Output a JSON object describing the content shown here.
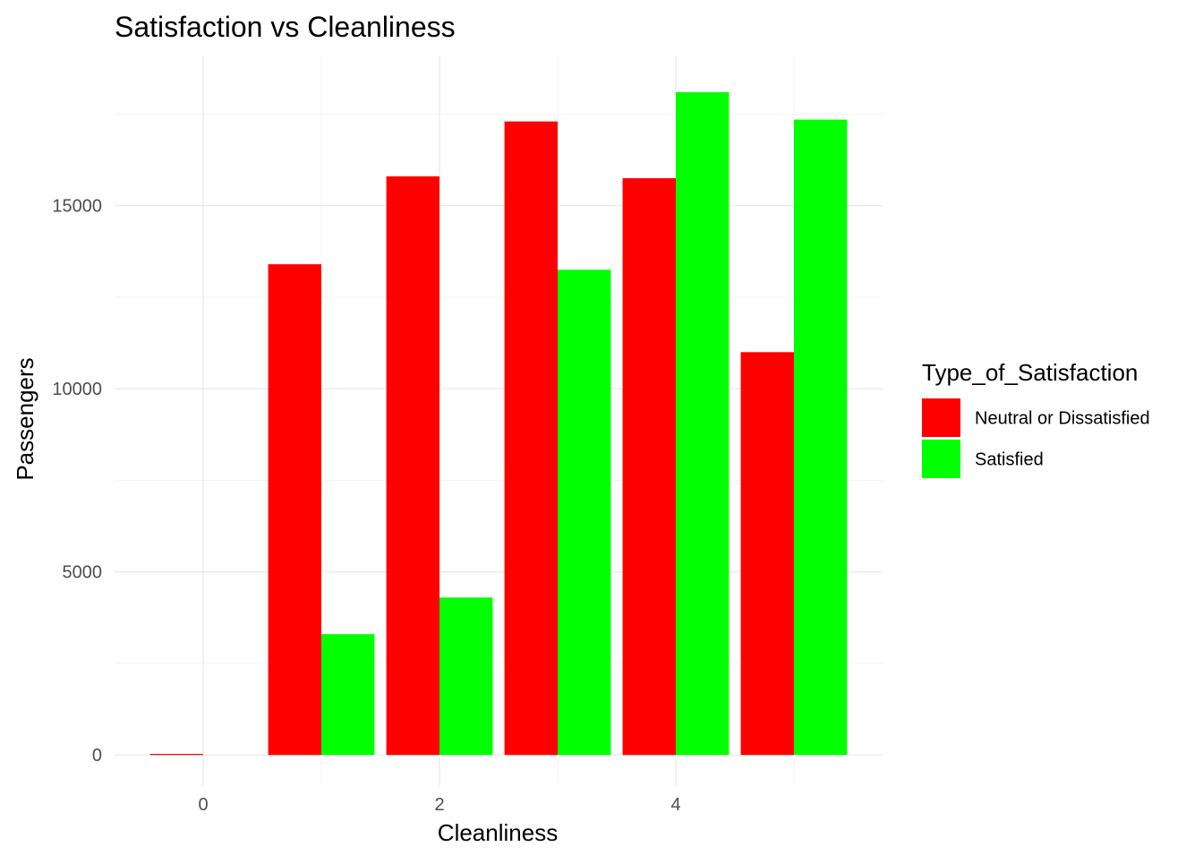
{
  "chart_data": {
    "type": "bar",
    "title": "Satisfaction vs Cleanliness",
    "xlabel": "Cleanliness",
    "ylabel": "Passengers",
    "categories": [
      0,
      1,
      2,
      3,
      4,
      5
    ],
    "x_ticks": [
      0,
      2,
      4
    ],
    "x_tick_labels": [
      "0",
      "2",
      "4"
    ],
    "y_ticks": [
      0,
      5000,
      10000,
      15000
    ],
    "y_tick_labels": [
      "0",
      "5000",
      "10000",
      "15000"
    ],
    "xlim": [
      -0.75,
      5.75
    ],
    "ylim": [
      -850,
      19100
    ],
    "grid": true,
    "legend": {
      "title": "Type_of_Satisfaction",
      "position": "right"
    },
    "series": [
      {
        "name": "Neutral or Dissatisfied",
        "color": "#FF0000",
        "values": [
          12,
          13400,
          15800,
          17300,
          15750,
          11000
        ]
      },
      {
        "name": "Satisfied",
        "color": "#00FF00",
        "values": [
          0,
          3300,
          4300,
          13250,
          18100,
          17350
        ]
      }
    ]
  }
}
